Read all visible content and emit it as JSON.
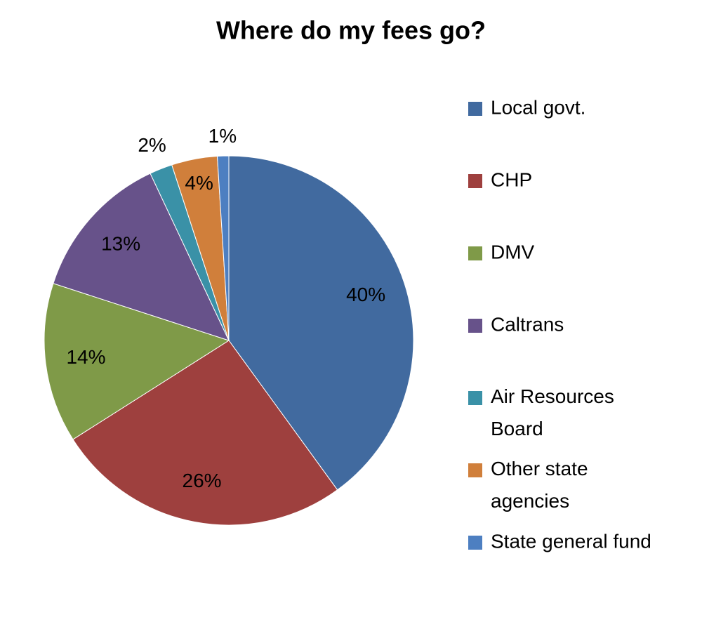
{
  "chart_data": {
    "type": "pie",
    "title": "Where do my fees go?",
    "categories": [
      "Local govt.",
      "CHP",
      "DMV",
      "Caltrans",
      "Air Resources Board",
      "Other state agencies",
      "State general fund"
    ],
    "values": [
      40,
      26,
      14,
      13,
      2,
      4,
      1
    ],
    "value_labels": [
      "40%",
      "26%",
      "14%",
      "13%",
      "2%",
      "4%",
      "1%"
    ],
    "colors": [
      "#416a9f",
      "#9e403e",
      "#7f9a48",
      "#67528a",
      "#3a91a7",
      "#d07f3b",
      "#4d7fc1"
    ],
    "legend": "right"
  }
}
